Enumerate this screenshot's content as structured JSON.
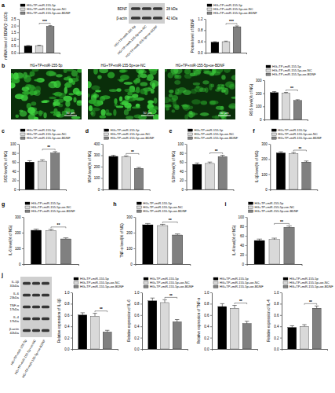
{
  "chart_data": [
    {
      "type": "bar",
      "panel_label": "a",
      "ylabel": "mRNA level of BDNF(2⁻ΔΔCt)",
      "categories": [
        "HG+TP+miR-155-5p",
        "HG+TP+miR-155-5p+oe-NC",
        "HG+TP+miR-155-5p+oe-BDNF"
      ],
      "values": [
        0.5,
        0.52,
        1.95
      ],
      "errors": [
        0.03,
        0.03,
        0.05
      ],
      "colors": [
        "#000000",
        "#d9d9d9",
        "#808080"
      ],
      "ylim": [
        0,
        2.5
      ],
      "yticks": [
        {
          "value": 0,
          "label": "0.0"
        },
        0.5,
        {
          "value": 1,
          "label": "1.0"
        },
        1.5,
        {
          "value": 2,
          "label": "2.0"
        },
        2.5
      ],
      "legend": "top",
      "tick_labels": "y",
      "significance": "***"
    },
    {
      "type": "bar",
      "ylabel": "Protein level of BDNF",
      "categories": [
        "HG+TP+miR-155-5p",
        "HG+TP+miR-155-5p+oe-NC",
        "HG+TP+miR-155-5p+oe-BDNF"
      ],
      "values": [
        0.37,
        0.39,
        0.92
      ],
      "errors": [
        0.02,
        0.02,
        0.03
      ],
      "colors": [
        "#000000",
        "#d9d9d9",
        "#808080"
      ],
      "ylim": [
        0,
        1.2
      ],
      "yticks": [
        {
          "value": 0,
          "label": "0.0"
        },
        0.4,
        0.8,
        1.2
      ],
      "legend": "top",
      "tick_labels": "y",
      "significance": "***"
    },
    {
      "type": "bar",
      "ylabel": "ROS level(% of NG)",
      "categories": [
        "HG+TP+miR-155-5p",
        "HG+TP+miR-155-5p+oe-NC",
        "HG+TP+miR-155-5p+oe-BDNF"
      ],
      "values": [
        205,
        200,
        145
      ],
      "errors": [
        8,
        7,
        6
      ],
      "colors": [
        "#000000",
        "#d9d9d9",
        "#808080"
      ],
      "ylim": [
        0,
        300
      ],
      "yticks": [
        0,
        100,
        200,
        300
      ],
      "legend": "top",
      "tick_labels": "y",
      "significance": "**"
    },
    {
      "type": "bar",
      "panel_label": "c",
      "ylabel": "SOD level(% of NG)",
      "categories": [
        "HG+TP+miR-155-5p",
        "HG+TP+miR-155-5p+oe-NC",
        "HG+TP+miR-155-5p+oe-BDNF"
      ],
      "values": [
        60,
        62,
        80
      ],
      "errors": [
        3,
        3,
        3
      ],
      "colors": [
        "#000000",
        "#d9d9d9",
        "#808080"
      ],
      "ylim": [
        0,
        100
      ],
      "yticks": [
        0,
        20,
        40,
        60,
        80,
        100
      ],
      "legend": "top",
      "tick_labels": "y",
      "significance": "**"
    },
    {
      "type": "bar",
      "panel_label": "d",
      "ylabel": "MDA level(% of NG)",
      "categories": [
        "HG+TP+miR-155-5p",
        "HG+TP+miR-155-5p+oe-NC",
        "HG+TP+miR-155-5p+oe-BDNF"
      ],
      "values": [
        290,
        285,
        185
      ],
      "errors": [
        10,
        9,
        8
      ],
      "colors": [
        "#000000",
        "#d9d9d9",
        "#808080"
      ],
      "ylim": [
        0,
        400
      ],
      "yticks": [
        0,
        100,
        200,
        300,
        400
      ],
      "legend": "top",
      "tick_labels": "y",
      "significance": "**"
    },
    {
      "type": "bar",
      "panel_label": "e",
      "ylabel": "GSH level(% of NG)",
      "categories": [
        "HG+TP+miR-155-5p",
        "HG+TP+miR-155-5p+oe-NC",
        "HG+TP+miR-155-5p+oe-BDNF"
      ],
      "values": [
        55,
        57,
        72
      ],
      "errors": [
        3,
        3,
        3
      ],
      "colors": [
        "#000000",
        "#d9d9d9",
        "#808080"
      ],
      "ylim": [
        0,
        100
      ],
      "yticks": [
        0,
        20,
        40,
        60,
        80,
        100
      ],
      "legend": "top",
      "tick_labels": "y",
      "significance": "**"
    },
    {
      "type": "bar",
      "panel_label": "f",
      "ylabel": "IL-1β level(% of NG)",
      "categories": [
        "HG+TP+miR-155-5p",
        "HG+TP+miR-155-5p+oe-NC",
        "HG+TP+miR-155-5p+oe-BDNF"
      ],
      "values": [
        240,
        235,
        180
      ],
      "errors": [
        8,
        8,
        7
      ],
      "colors": [
        "#000000",
        "#d9d9d9",
        "#808080"
      ],
      "ylim": [
        0,
        300
      ],
      "yticks": [
        0,
        100,
        200,
        300
      ],
      "legend": "top",
      "tick_labels": "y",
      "significance": "**"
    },
    {
      "type": "bar",
      "panel_label": "g",
      "ylabel": "IL-6 level(% of NG)",
      "categories": [
        "HG+TP+miR-155-5p",
        "HG+TP+miR-155-5p+oe-NC",
        "HG+TP+miR-155-5p+oe-BDNF"
      ],
      "values": [
        215,
        213,
        160
      ],
      "errors": [
        8,
        8,
        7
      ],
      "colors": [
        "#000000",
        "#d9d9d9",
        "#808080"
      ],
      "ylim": [
        0,
        300
      ],
      "yticks": [
        0,
        100,
        200,
        300
      ],
      "legend": "top",
      "tick_labels": "y",
      "significance": "**"
    },
    {
      "type": "bar",
      "panel_label": "h",
      "ylabel": "TNF-α level(% of NG)",
      "categories": [
        "HG+TP+miR-155-5p",
        "HG+TP+miR-155-5p+oe-NC",
        "HG+TP+miR-155-5p+oe-BDNF"
      ],
      "values": [
        250,
        245,
        185
      ],
      "errors": [
        8,
        8,
        7
      ],
      "colors": [
        "#000000",
        "#d9d9d9",
        "#808080"
      ],
      "ylim": [
        0,
        300
      ],
      "yticks": [
        0,
        100,
        200,
        300
      ],
      "legend": "top",
      "tick_labels": "y",
      "significance": "**"
    },
    {
      "type": "bar",
      "panel_label": "i",
      "ylabel": "IL-4 level(% of NG)",
      "categories": [
        "HG+TP+miR-155-5p",
        "HG+TP+miR-155-5p+oe-NC",
        "HG+TP+miR-155-5p+oe-BDNF"
      ],
      "values": [
        50,
        52,
        78
      ],
      "errors": [
        3,
        3,
        3
      ],
      "colors": [
        "#000000",
        "#d9d9d9",
        "#808080"
      ],
      "ylim": [
        0,
        100
      ],
      "yticks": [
        0,
        20,
        40,
        60,
        80,
        100
      ],
      "legend": "top",
      "tick_labels": "y",
      "significance": "**"
    },
    {
      "type": "bar",
      "ylabel": "Relative expression of IL-1β",
      "categories": [
        "HG+TP+miR-155-5p",
        "HG+TP+miR-155-5p+oe-NC",
        "HG+TP+miR-155-5p+oe-BDNF"
      ],
      "values": [
        0.6,
        0.58,
        0.3
      ],
      "errors": [
        0.04,
        0.05,
        0.03
      ],
      "colors": [
        "#000000",
        "#d9d9d9",
        "#808080"
      ],
      "ylim": [
        0,
        1
      ],
      "yticks": [
        {
          "value": 0,
          "label": "0.0"
        },
        0.2,
        0.4,
        0.6,
        0.8,
        {
          "value": 1,
          "label": "1.0"
        }
      ],
      "legend": "top",
      "tick_labels": "y",
      "significance": "**"
    },
    {
      "type": "bar",
      "ylabel": "Relative expression of IL-6",
      "categories": [
        "HG+TP+miR-155-5p",
        "HG+TP+miR-155-5p+oe-NC",
        "HG+TP+miR-155-5p+oe-BDNF"
      ],
      "values": [
        0.85,
        0.82,
        0.48
      ],
      "errors": [
        0.05,
        0.05,
        0.04
      ],
      "colors": [
        "#000000",
        "#d9d9d9",
        "#808080"
      ],
      "ylim": [
        0,
        1
      ],
      "yticks": [
        {
          "value": 0,
          "label": "0.0"
        },
        0.2,
        0.4,
        0.6,
        0.8,
        {
          "value": 1,
          "label": "1.0"
        }
      ],
      "legend": "top",
      "tick_labels": "y",
      "significance": "**"
    },
    {
      "type": "bar",
      "ylabel": "Relative expression of TNF-α",
      "categories": [
        "HG+TP+miR-155-5p",
        "HG+TP+miR-155-5p+oe-NC",
        "HG+TP+miR-155-5p+oe-BDNF"
      ],
      "values": [
        0.75,
        0.72,
        0.45
      ],
      "errors": [
        0.05,
        0.05,
        0.04
      ],
      "colors": [
        "#000000",
        "#d9d9d9",
        "#808080"
      ],
      "ylim": [
        0,
        1
      ],
      "yticks": [
        {
          "value": 0,
          "label": "0.0"
        },
        0.2,
        0.4,
        0.6,
        0.8,
        {
          "value": 1,
          "label": "1.0"
        }
      ],
      "legend": "top",
      "tick_labels": "y",
      "significance": "**"
    },
    {
      "type": "bar",
      "ylabel": "Relative expression of IL-4",
      "categories": [
        "HG+TP+miR-155-5p",
        "HG+TP+miR-155-5p+oe-NC",
        "HG+TP+miR-155-5p+oe-BDNF"
      ],
      "values": [
        0.38,
        0.4,
        0.72
      ],
      "errors": [
        0.03,
        0.03,
        0.04
      ],
      "colors": [
        "#000000",
        "#d9d9d9",
        "#808080"
      ],
      "ylim": [
        0,
        1
      ],
      "yticks": [
        {
          "value": 0,
          "label": "0.0"
        },
        0.2,
        0.4,
        0.6,
        0.8,
        {
          "value": 1,
          "label": "1.0"
        }
      ],
      "legend": "top",
      "tick_labels": "y",
      "significance": "**"
    }
  ],
  "blots": [
    {
      "bands": [
        {
          "protein": "BDNF",
          "size": "28 kDa"
        },
        {
          "protein": "β-actin",
          "size": "42 kDa"
        }
      ],
      "lanes": [
        "HG+TP+miR-155-5p",
        "HG+TP+miR-155-5p+oe-NC",
        "HG+TP+miR-155-5p+oe-BDNF"
      ]
    },
    {
      "panel_label": "j",
      "bands": [
        {
          "protein": "IL-1β",
          "size": "31kDa"
        },
        {
          "protein": "IL-6",
          "size": "23kDa"
        },
        {
          "protein": "TNF-α",
          "size": "17kDa"
        },
        {
          "protein": "IL-4",
          "size": "17kDa"
        },
        {
          "protein": "β-actin",
          "size": "42kDa"
        }
      ],
      "lanes": [
        "HG+TP+miR-155-5p",
        "HG+TP+miR-155-5p+oe-NC",
        "HG+TP+miR-155-5p+oe-BDNF"
      ]
    }
  ],
  "micrographs": {
    "panel_label": "b",
    "captions": [
      "HG+TP+miR-155-5p",
      "HG+TP+miR-155-5p+oe-NC",
      "HG+TP+miR-155-5p+oe-BDNF"
    ],
    "scale_bar": "50 μm"
  }
}
